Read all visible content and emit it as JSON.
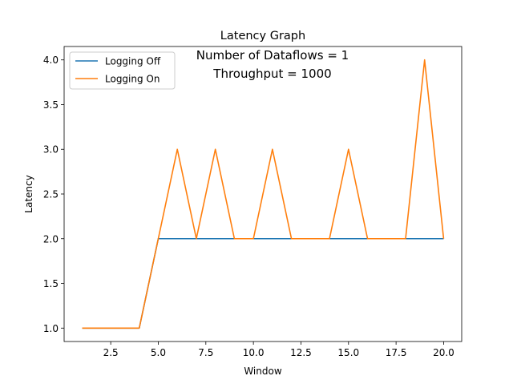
{
  "chart_data": {
    "type": "line",
    "title": "Latency Graph",
    "annotations": [
      "Number of Dataflows = 1",
      "Throughput = 1000"
    ],
    "xlabel": "Window",
    "ylabel": "Latency",
    "xlim": [
      0.05,
      20.95
    ],
    "ylim": [
      0.85,
      4.15
    ],
    "xticks": [
      2.5,
      5.0,
      7.5,
      10.0,
      12.5,
      15.0,
      17.5,
      20.0
    ],
    "xtick_labels": [
      "2.5",
      "5.0",
      "7.5",
      "10.0",
      "12.5",
      "15.0",
      "17.5",
      "20.0"
    ],
    "yticks": [
      1.0,
      1.5,
      2.0,
      2.5,
      3.0,
      3.5,
      4.0
    ],
    "ytick_labels": [
      "1.0",
      "1.5",
      "2.0",
      "2.5",
      "3.0",
      "3.5",
      "4.0"
    ],
    "grid": false,
    "legend_position": "top-left",
    "x": [
      1,
      2,
      3,
      4,
      5,
      6,
      7,
      8,
      9,
      10,
      11,
      12,
      13,
      14,
      15,
      16,
      17,
      18,
      19,
      20
    ],
    "series": [
      {
        "name": "Logging Off",
        "color": "#1f77b4",
        "values": [
          1,
          1,
          1,
          1,
          2,
          2,
          2,
          2,
          2,
          2,
          2,
          2,
          2,
          2,
          2,
          2,
          2,
          2,
          2,
          2
        ]
      },
      {
        "name": "Logging On",
        "color": "#ff7f0e",
        "values": [
          1,
          1,
          1,
          1,
          2,
          3,
          2,
          3,
          2,
          2,
          3,
          2,
          2,
          2,
          3,
          2,
          2,
          2,
          4,
          2
        ]
      }
    ]
  }
}
